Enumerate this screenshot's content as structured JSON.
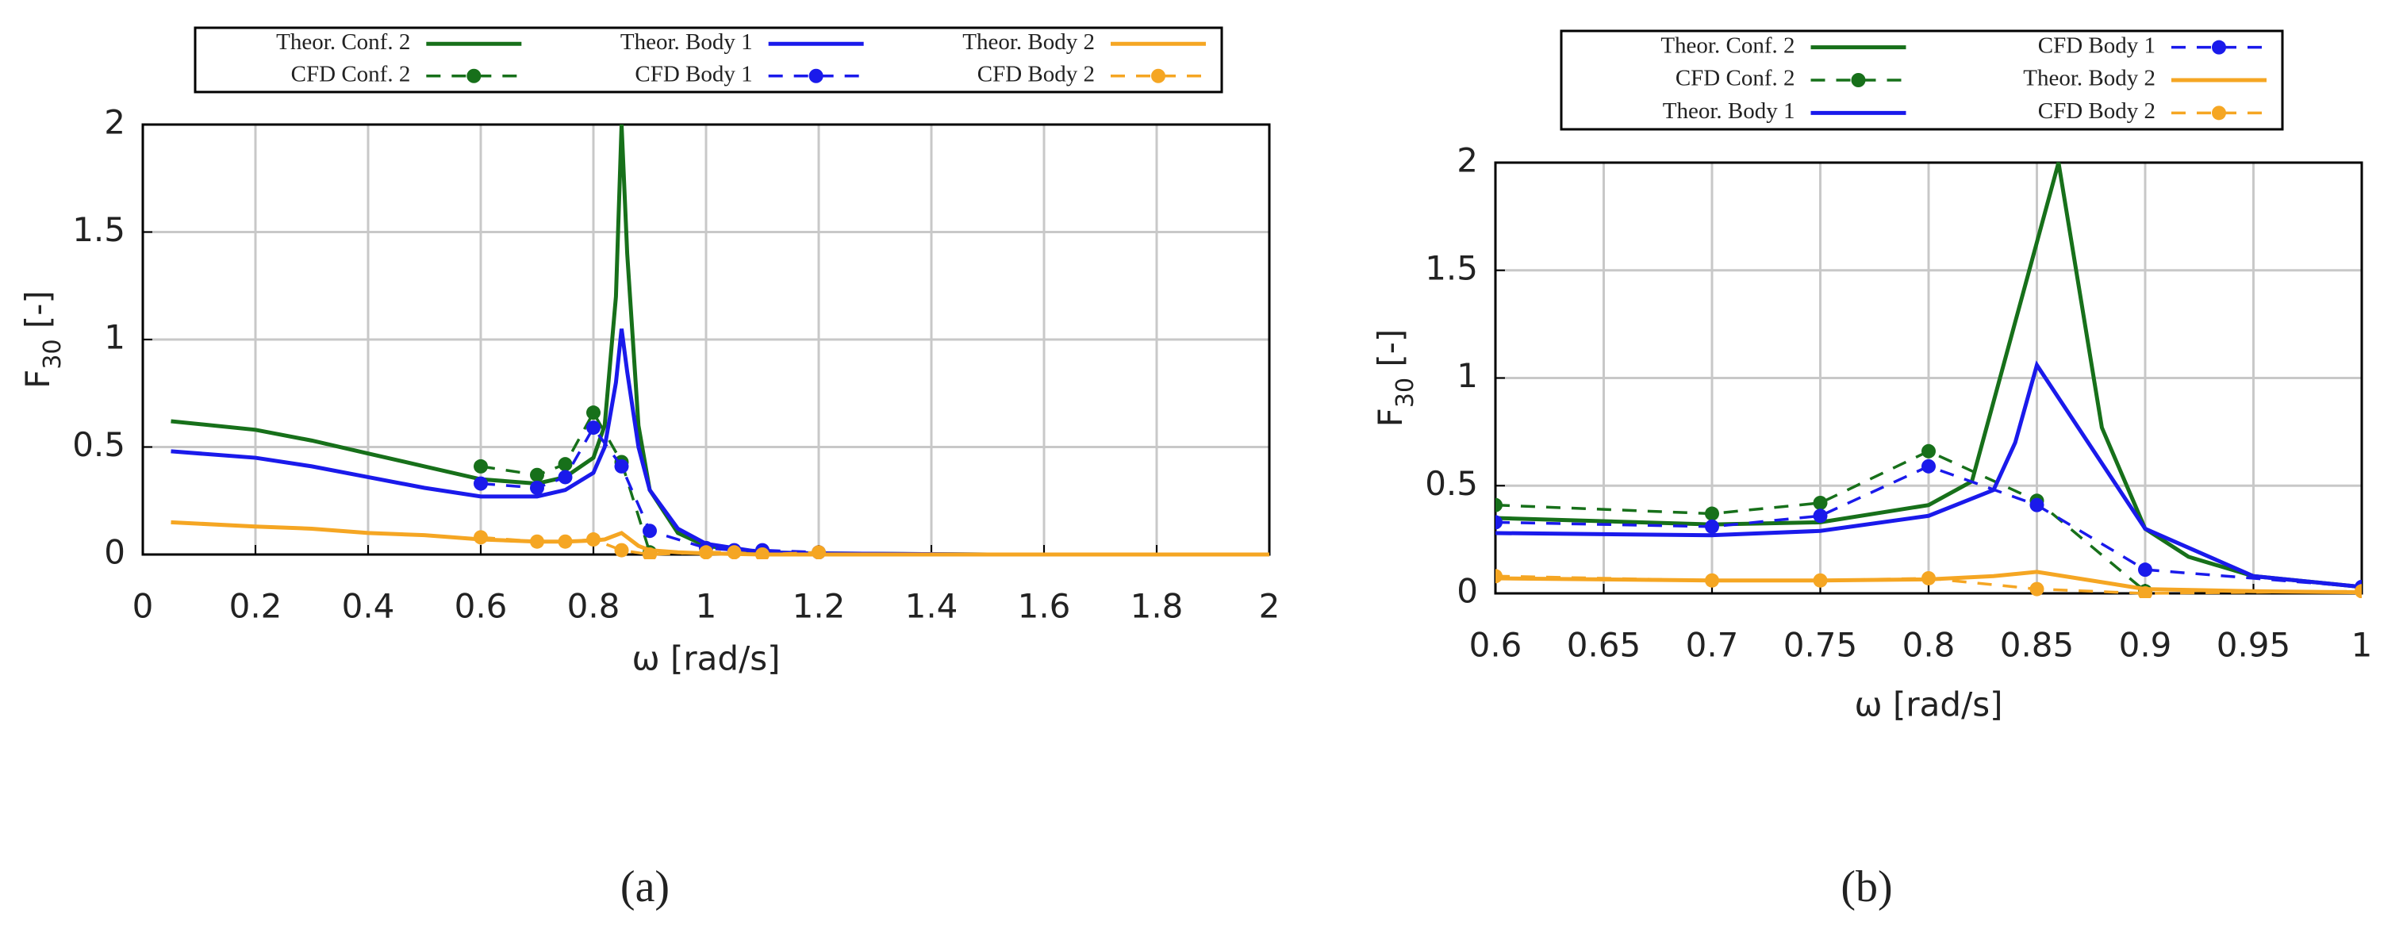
{
  "chart_data": [
    {
      "type": "line",
      "caption": "(a)",
      "xlabel": "ω [rad/s]",
      "ylabel": [
        "F",
        "30",
        " [-]"
      ],
      "xlim": [
        0,
        2
      ],
      "xticks": [
        0,
        0.2,
        0.4,
        0.6,
        0.8,
        1,
        1.2,
        1.4,
        1.6,
        1.8,
        2
      ],
      "ylim": [
        0,
        2
      ],
      "yticks": [
        0,
        0.5,
        1,
        1.5,
        2
      ],
      "grid": true,
      "legend_rows": 2,
      "series": [
        {
          "name": "Theor. Conf. 2",
          "color": "#17701a",
          "dash": false,
          "markers": false,
          "x": [
            0.05,
            0.2,
            0.3,
            0.4,
            0.5,
            0.6,
            0.7,
            0.75,
            0.8,
            0.82,
            0.84,
            0.85,
            0.86,
            0.88,
            0.9,
            0.95,
            1.0,
            1.1,
            1.2,
            1.5,
            2.0
          ],
          "values": [
            0.62,
            0.58,
            0.53,
            0.47,
            0.41,
            0.35,
            0.33,
            0.36,
            0.45,
            0.6,
            1.2,
            2.0,
            1.4,
            0.6,
            0.3,
            0.1,
            0.04,
            0.01,
            0.005,
            0,
            0
          ]
        },
        {
          "name": "CFD Conf. 2",
          "color": "#17701a",
          "dash": true,
          "markers": true,
          "x": [
            0.6,
            0.7,
            0.75,
            0.8,
            0.85,
            0.9
          ],
          "values": [
            0.41,
            0.37,
            0.42,
            0.66,
            0.43,
            0.01
          ]
        },
        {
          "name": "Theor. Body 1",
          "color": "#1a1aeb",
          "dash": false,
          "markers": false,
          "x": [
            0.05,
            0.2,
            0.3,
            0.4,
            0.5,
            0.6,
            0.7,
            0.75,
            0.8,
            0.82,
            0.84,
            0.85,
            0.86,
            0.88,
            0.9,
            0.95,
            1.0,
            1.1,
            1.2,
            1.5,
            2.0
          ],
          "values": [
            0.48,
            0.45,
            0.41,
            0.36,
            0.31,
            0.27,
            0.27,
            0.3,
            0.38,
            0.5,
            0.8,
            1.05,
            0.85,
            0.5,
            0.3,
            0.12,
            0.05,
            0.01,
            0.005,
            0,
            0
          ]
        },
        {
          "name": "CFD Body 1",
          "color": "#1a1aeb",
          "dash": true,
          "markers": true,
          "x": [
            0.6,
            0.7,
            0.75,
            0.8,
            0.85,
            0.9,
            1.0,
            1.05,
            1.1,
            1.2
          ],
          "values": [
            0.33,
            0.31,
            0.36,
            0.59,
            0.41,
            0.11,
            0.03,
            0.02,
            0.02,
            0.01
          ]
        },
        {
          "name": "Theor. Body 2",
          "color": "#f5a623",
          "dash": false,
          "markers": false,
          "x": [
            0.05,
            0.2,
            0.3,
            0.4,
            0.5,
            0.6,
            0.7,
            0.75,
            0.8,
            0.82,
            0.84,
            0.85,
            0.86,
            0.88,
            0.9,
            0.95,
            1.0,
            1.1,
            1.2,
            1.5,
            2.0
          ],
          "values": [
            0.15,
            0.13,
            0.12,
            0.1,
            0.09,
            0.07,
            0.06,
            0.06,
            0.065,
            0.07,
            0.09,
            0.1,
            0.08,
            0.04,
            0.02,
            0.01,
            0.005,
            0,
            0,
            0,
            0
          ]
        },
        {
          "name": "CFD Body 2",
          "color": "#f5a623",
          "dash": true,
          "markers": true,
          "x": [
            0.6,
            0.7,
            0.75,
            0.8,
            0.85,
            0.9,
            1.0,
            1.05,
            1.1,
            1.2
          ],
          "values": [
            0.08,
            0.06,
            0.06,
            0.07,
            0.02,
            0.0,
            0.01,
            0.01,
            0.0,
            0.01
          ]
        }
      ]
    },
    {
      "type": "line",
      "caption": "(b)",
      "xlabel": "ω [rad/s]",
      "ylabel": [
        "F",
        "30",
        " [-]"
      ],
      "xlim": [
        0.6,
        1
      ],
      "xticks": [
        0.6,
        0.65,
        0.7,
        0.75,
        0.8,
        0.85,
        0.9,
        0.95,
        1
      ],
      "ylim": [
        0,
        2
      ],
      "yticks": [
        0,
        0.5,
        1,
        1.5,
        2
      ],
      "grid": true,
      "legend_rows": 3,
      "series": [
        {
          "name": "Theor. Conf. 2",
          "color": "#17701a",
          "dash": false,
          "markers": false,
          "x": [
            0.6,
            0.7,
            0.75,
            0.8,
            0.82,
            0.86,
            0.88,
            0.9,
            0.92,
            0.95,
            1.0
          ],
          "values": [
            0.35,
            0.32,
            0.33,
            0.41,
            0.52,
            2.0,
            0.77,
            0.3,
            0.17,
            0.08,
            0.03
          ]
        },
        {
          "name": "CFD Conf. 2",
          "color": "#17701a",
          "dash": true,
          "markers": true,
          "x": [
            0.6,
            0.7,
            0.75,
            0.8,
            0.85,
            0.9
          ],
          "values": [
            0.41,
            0.37,
            0.42,
            0.66,
            0.43,
            0.01
          ]
        },
        {
          "name": "Theor. Body 1",
          "color": "#1a1aeb",
          "dash": false,
          "markers": false,
          "x": [
            0.6,
            0.7,
            0.75,
            0.8,
            0.83,
            0.84,
            0.85,
            0.9,
            0.95,
            1.0
          ],
          "values": [
            0.28,
            0.27,
            0.29,
            0.36,
            0.48,
            0.7,
            1.06,
            0.3,
            0.08,
            0.03
          ]
        },
        {
          "name": "CFD Body 1",
          "color": "#1a1aeb",
          "dash": true,
          "markers": true,
          "x": [
            0.6,
            0.7,
            0.75,
            0.8,
            0.85,
            0.9,
            1.0
          ],
          "values": [
            0.33,
            0.31,
            0.36,
            0.59,
            0.41,
            0.11,
            0.03
          ]
        },
        {
          "name": "Theor. Body 2",
          "color": "#f5a623",
          "dash": false,
          "markers": false,
          "x": [
            0.6,
            0.7,
            0.75,
            0.8,
            0.83,
            0.85,
            0.9,
            0.95,
            1.0
          ],
          "values": [
            0.07,
            0.06,
            0.06,
            0.065,
            0.08,
            0.1,
            0.02,
            0.01,
            0.005
          ]
        },
        {
          "name": "CFD Body 2",
          "color": "#f5a623",
          "dash": true,
          "markers": true,
          "x": [
            0.6,
            0.7,
            0.75,
            0.8,
            0.85,
            0.9,
            1.0
          ],
          "values": [
            0.08,
            0.06,
            0.06,
            0.07,
            0.02,
            0.0,
            0.01
          ]
        }
      ]
    }
  ]
}
